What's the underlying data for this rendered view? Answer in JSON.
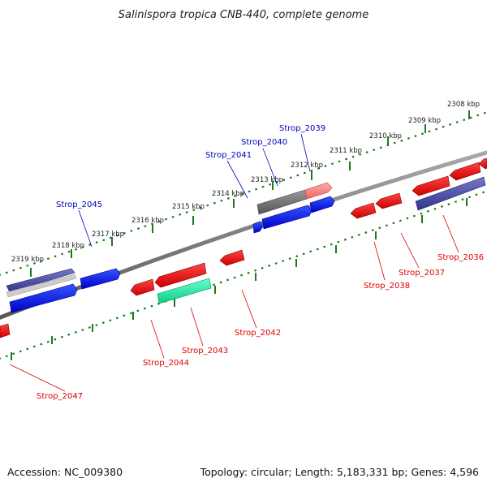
{
  "title": "Salinispora tropica CNB-440, complete genome",
  "footer": {
    "accession": "Accession: NC_009380",
    "summary": "Topology: circular; Length: 5,183,331 bp; Genes: 4,596"
  },
  "scale_labels": [
    "2308 kbp",
    "2309 kbp",
    "2310 kbp",
    "2311 kbp",
    "2312 kbp",
    "2313 kbp",
    "2314 kbp",
    "2315 kbp",
    "2316 kbp",
    "2317 kbp",
    "2318 kbp",
    "2319 kbp"
  ],
  "forward_genes": [
    "Strop_2039",
    "Strop_2040",
    "Strop_2041",
    "Strop_2045"
  ],
  "reverse_genes": [
    "Strop_2036",
    "Strop_2037",
    "Strop_2038",
    "Strop_2042",
    "Strop_2043",
    "Strop_2044",
    "Strop_2047"
  ],
  "colors": {
    "forward": "#0000dd",
    "reverse": "#dd0000",
    "backbone": "#777777",
    "ticks": "#1a7a1a",
    "highlight": "#22dd99"
  }
}
